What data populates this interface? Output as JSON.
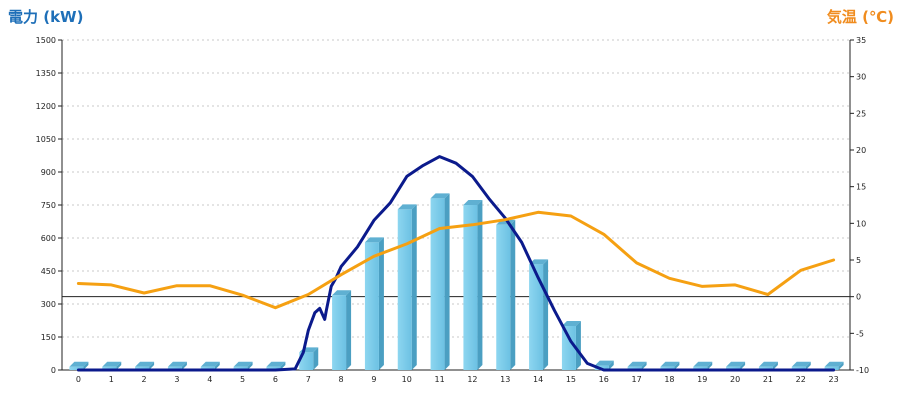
{
  "chart_data": {
    "type": "bar+line",
    "units": {
      "left": "電力 (kW)",
      "right": "気温 (℃)"
    },
    "x_categories": [
      "0",
      "1",
      "2",
      "3",
      "4",
      "5",
      "6",
      "7",
      "8",
      "9",
      "10",
      "11",
      "12",
      "13",
      "14",
      "15",
      "16",
      "17",
      "18",
      "19",
      "20",
      "21",
      "22",
      "23"
    ],
    "y_left": {
      "min": 0,
      "max": 1500,
      "ticks": [
        0,
        150,
        300,
        450,
        600,
        750,
        900,
        1050,
        1200,
        1350,
        1500
      ]
    },
    "y_right": {
      "min": -10,
      "max": 35,
      "ticks": [
        -10,
        -5,
        0,
        5,
        10,
        15,
        20,
        25,
        30,
        35
      ]
    },
    "bars": {
      "axis": "left",
      "color": "#7ecdea",
      "values": [
        15,
        15,
        15,
        15,
        15,
        15,
        15,
        80,
        340,
        580,
        730,
        780,
        750,
        660,
        480,
        200,
        20,
        15,
        15,
        15,
        15,
        15,
        15,
        15
      ]
    },
    "power_line": {
      "axis": "left",
      "color": "#0b1a8c",
      "x": [
        0,
        1,
        2,
        3,
        4,
        5,
        6,
        6.6,
        6.85,
        7.0,
        7.2,
        7.35,
        7.5,
        7.55,
        7.7,
        7.85,
        8,
        8.5,
        9,
        9.5,
        10,
        10.5,
        11,
        11.5,
        12,
        12.5,
        13,
        13.5,
        14,
        14.5,
        15,
        15.5,
        16,
        17,
        18,
        19,
        20,
        21,
        22,
        23
      ],
      "y": [
        0,
        0,
        0,
        0,
        0,
        0,
        0,
        5,
        80,
        180,
        260,
        280,
        230,
        270,
        380,
        420,
        470,
        560,
        680,
        760,
        880,
        930,
        970,
        940,
        880,
        780,
        690,
        580,
        420,
        270,
        130,
        30,
        0,
        0,
        0,
        0,
        0,
        0,
        0,
        0
      ]
    },
    "temperature_line": {
      "axis": "right",
      "color": "#f5a012",
      "x": [
        0,
        1,
        2,
        3,
        4,
        5,
        6,
        7,
        8,
        9,
        10,
        11,
        12,
        13,
        14,
        15,
        16,
        17,
        18,
        19,
        20,
        21,
        22,
        23
      ],
      "y": [
        1.8,
        1.6,
        0.5,
        1.5,
        1.5,
        0.2,
        -1.5,
        0.3,
        3.0,
        5.5,
        7.2,
        9.3,
        9.8,
        10.5,
        11.5,
        11.0,
        8.5,
        4.6,
        2.5,
        1.4,
        1.6,
        0.3,
        3.6,
        5.0
      ]
    },
    "grid": true
  }
}
